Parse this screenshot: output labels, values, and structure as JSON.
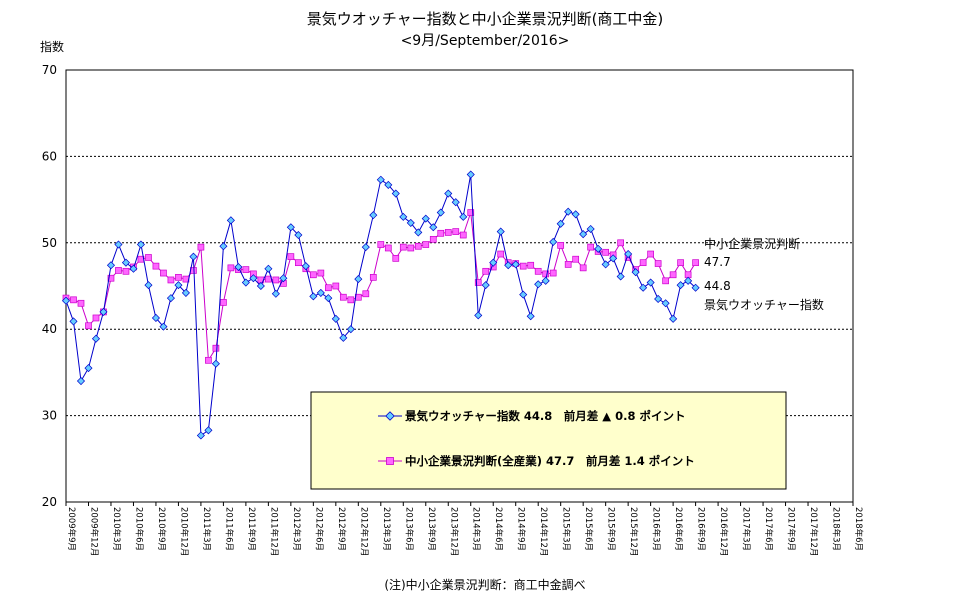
{
  "title": "景気ウオッチャー指数と中小企業景況判断(商工中金)",
  "subtitle": "<9月/September/2016>",
  "ylabel": "指数",
  "footnote": "(注)中小企業景況判断：商工中金調べ",
  "legend": {
    "watcher": "景気ウオッチャー指数 44.8　前月差 ▲ 0.8 ポイント",
    "sme": "中小企業景況判断(全産業) 47.7　前月差 1.4 ポイント"
  },
  "annotations": {
    "sme_name": "中小企業景況判断",
    "sme_value": "47.7",
    "watcher_value": "44.8",
    "watcher_name": "景気ウオッチャー指数"
  },
  "chart_data": {
    "type": "line",
    "ylim": [
      20,
      70
    ],
    "yticks": [
      20,
      30,
      40,
      50,
      60,
      70
    ],
    "grid": true,
    "xtick_labels": [
      "2009年9月",
      "2009年12月",
      "2010年3月",
      "2010年6月",
      "2010年9月",
      "2010年12月",
      "2011年3月",
      "2011年6月",
      "2011年9月",
      "2011年12月",
      "2012年3月",
      "2012年6月",
      "2012年9月",
      "2012年12月",
      "2013年3月",
      "2013年6月",
      "2013年9月",
      "2013年12月",
      "2014年3月",
      "2014年6月",
      "2014年9月",
      "2014年12月",
      "2015年3月",
      "2015年6月",
      "2015年9月",
      "2015年12月",
      "2016年3月",
      "2016年6月",
      "2016年9月",
      "2016年12月",
      "2017年3月",
      "2017年6月",
      "2017年9月",
      "2017年12月",
      "2018年3月",
      "2018年6月"
    ],
    "series": [
      {
        "name": "景気ウオッチャー指数",
        "color": "#0000cc",
        "marker_fill": "#66ccff",
        "marker": "diamond",
        "values": [
          43.3,
          40.9,
          34.0,
          35.5,
          38.9,
          42.0,
          47.4,
          49.8,
          47.7,
          47.0,
          49.8,
          45.1,
          41.3,
          40.3,
          43.6,
          45.1,
          44.2,
          48.4,
          27.7,
          28.3,
          36.0,
          49.6,
          52.6,
          47.2,
          45.4,
          45.9,
          45.0,
          47.0,
          44.1,
          45.9,
          51.8,
          50.9,
          47.3,
          43.8,
          44.2,
          43.6,
          41.2,
          39.0,
          40.0,
          45.8,
          49.5,
          53.2,
          57.3,
          56.7,
          55.7,
          53.0,
          52.3,
          51.2,
          52.8,
          51.8,
          53.5,
          55.7,
          54.7,
          53.0,
          57.9,
          41.6,
          45.1,
          47.7,
          51.3,
          47.4,
          47.5,
          44.0,
          41.5,
          45.2,
          45.6,
          50.1,
          52.2,
          53.6,
          53.3,
          51.0,
          51.6,
          49.3,
          47.5,
          48.2,
          46.1,
          48.7,
          46.6,
          44.8,
          45.4,
          43.5,
          43.0,
          41.2,
          45.1,
          45.6,
          44.8
        ]
      },
      {
        "name": "中小企業景況判断",
        "color": "#cc00cc",
        "marker_fill": "#ff66ff",
        "marker": "square",
        "values": [
          43.6,
          43.4,
          43.0,
          40.4,
          41.3,
          42.0,
          45.9,
          46.8,
          46.7,
          47.2,
          48.1,
          48.3,
          47.3,
          46.5,
          45.7,
          46.0,
          45.8,
          46.8,
          49.5,
          36.4,
          37.8,
          43.1,
          47.1,
          46.9,
          46.9,
          46.4,
          45.7,
          45.8,
          45.7,
          45.3,
          48.4,
          47.7,
          47.0,
          46.3,
          46.5,
          44.8,
          45.0,
          43.7,
          43.4,
          43.7,
          44.1,
          46.0,
          49.8,
          49.4,
          48.2,
          49.5,
          49.4,
          49.6,
          49.8,
          50.4,
          51.1,
          51.2,
          51.3,
          50.9,
          53.5,
          45.4,
          46.7,
          47.2,
          48.7,
          47.7,
          47.6,
          47.3,
          47.4,
          46.7,
          46.4,
          46.5,
          49.7,
          47.5,
          48.1,
          47.1,
          49.5,
          49.0,
          48.9,
          48.6,
          50.0,
          48.3,
          46.9,
          47.7,
          48.7,
          47.6,
          45.6,
          46.3,
          47.7,
          46.3,
          47.7
        ]
      }
    ]
  }
}
